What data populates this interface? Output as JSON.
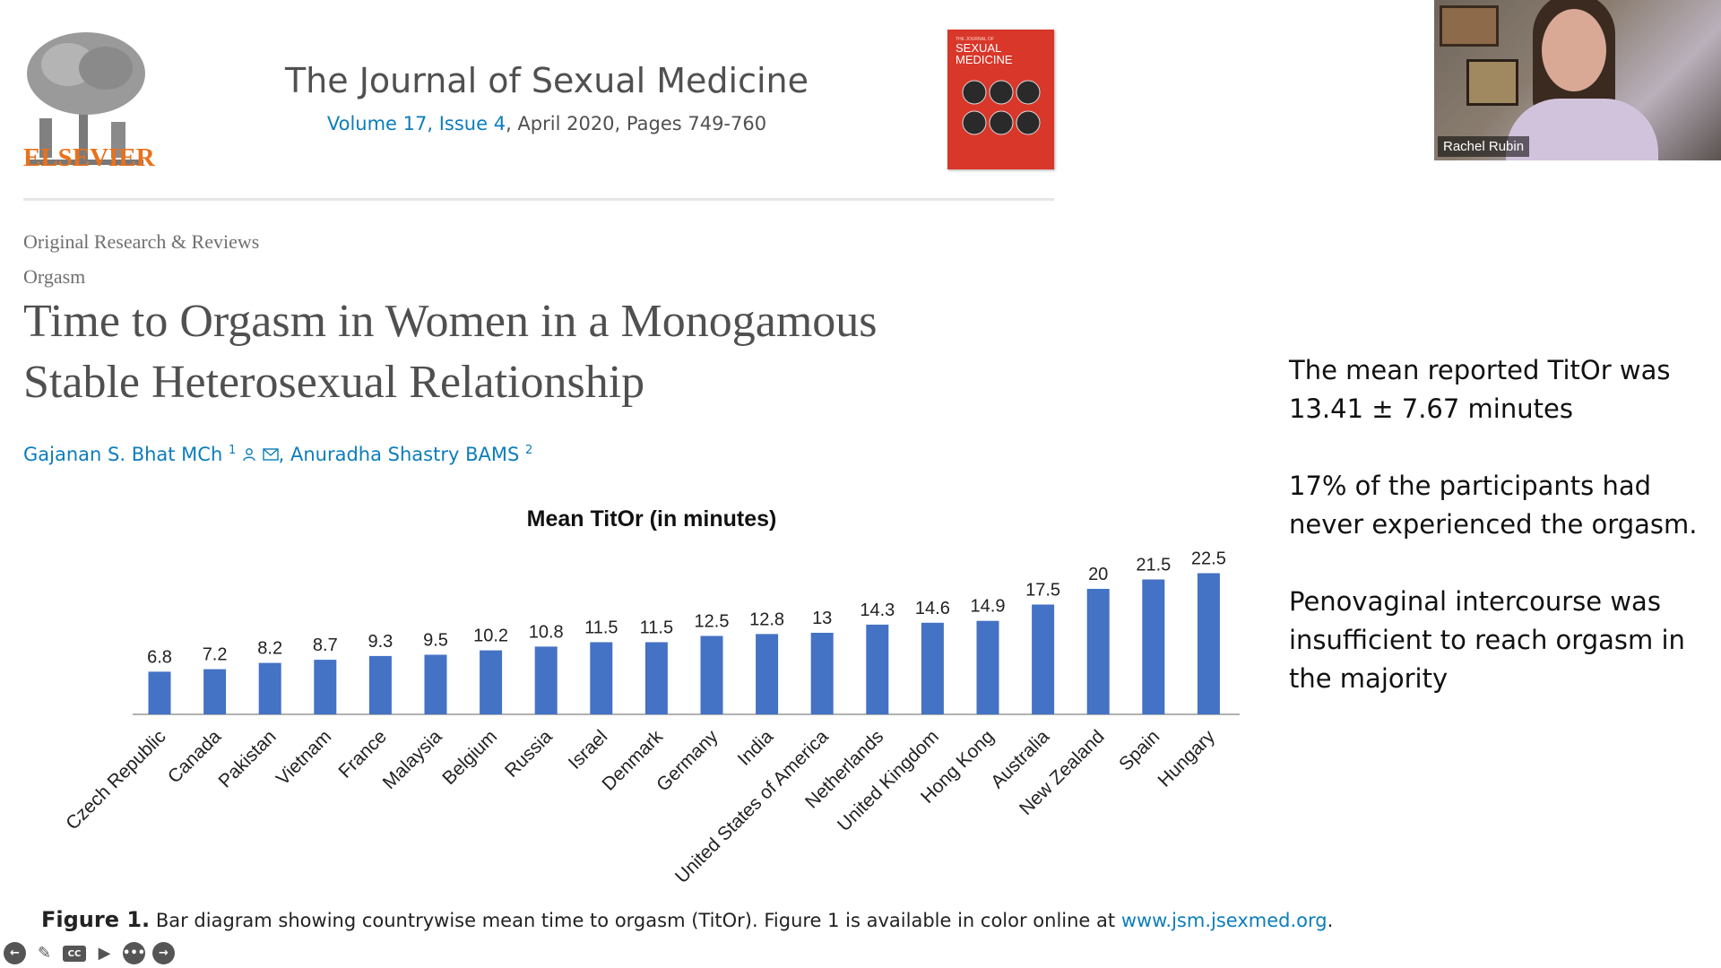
{
  "publisher": {
    "name": "ELSEVIER",
    "logo_icon": "tree-engraving-icon"
  },
  "journal": {
    "title": "The Journal of Sexual Medicine",
    "volume_issue": "Volume 17, Issue 4",
    "date_pages": ", April 2020, Pages 749-760",
    "cover_small_text": "THE JOURNAL OF",
    "cover_title": "SEXUAL MEDICINE"
  },
  "article": {
    "category": "Original Research & Reviews",
    "subcategory": "Orgasm",
    "title_line1": "Time to Orgasm in Women in a Monogamous",
    "title_line2": "Stable Heterosexual Relationship",
    "author1": "Gajanan S. Bhat MCh",
    "author1_sup": "1",
    "author2": "Anuradha Shastry BAMS",
    "author2_sup": "2"
  },
  "chart_data": {
    "type": "bar",
    "title": "Mean TitOr (in minutes)",
    "xlabel": "",
    "ylabel": "",
    "ylim": [
      0,
      25
    ],
    "grid": false,
    "color": "#4472c4",
    "categories": [
      "Czech Republic",
      "Canada",
      "Pakistan",
      "Vietnam",
      "France",
      "Malaysia",
      "Belgium",
      "Russia",
      "Israel",
      "Denmark",
      "Germany",
      "India",
      "United States of America",
      "Netherlands",
      "United Kingdom",
      "Hong Kong",
      "Australia",
      "New Zealand",
      "Spain",
      "Hungary"
    ],
    "values": [
      6.8,
      7.2,
      8.2,
      8.7,
      9.3,
      9.5,
      10.2,
      10.8,
      11.5,
      11.5,
      12.5,
      12.8,
      13,
      14.3,
      14.6,
      14.9,
      17.5,
      20,
      21.5,
      22.5
    ]
  },
  "caption": {
    "label": "Figure 1.",
    "text": " Bar diagram showing countrywise mean time to orgasm (TitOr). Figure 1 is available in color online at ",
    "link": "www.jsm.jsexmed.org",
    "end": "."
  },
  "video": {
    "participant_name": "Rachel Rubin"
  },
  "notes": {
    "point1": "The mean reported TitOr was 13.41 ± 7.67 minutes",
    "point2": "17% of the participants had never experienced the orgasm.",
    "point3": "Penovaginal intercourse was insufficient to reach orgasm in the majority"
  },
  "toolbar": {
    "back_icon": "←",
    "pen_icon": "✎",
    "cc_label": "CC",
    "camera_icon": "▶",
    "more_icon": "•••",
    "forward_icon": "→"
  }
}
